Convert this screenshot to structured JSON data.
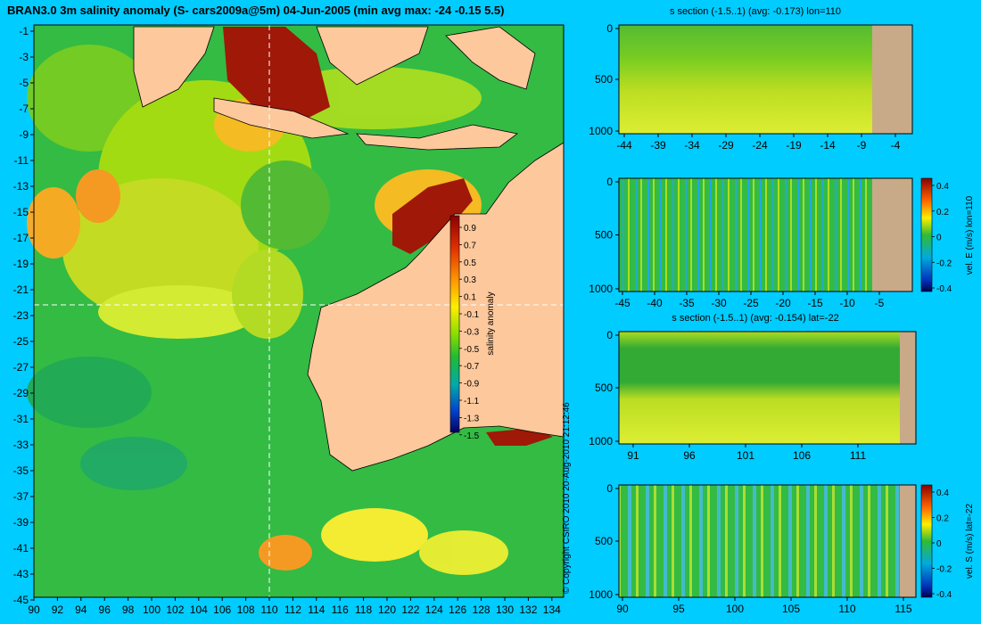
{
  "title": "BRAN3.0 3m salinity anomaly (S- cars2009a@5m) 04-Jun-2005 (min avg max: -24 -0.15 5.5)",
  "map": {
    "lat_ticks": [
      "-1",
      "-3",
      "-5",
      "-7",
      "-9",
      "-11",
      "-13",
      "-15",
      "-17",
      "-19",
      "-21",
      "-23",
      "-25",
      "-27",
      "-29",
      "-31",
      "-33",
      "-35",
      "-37",
      "-39",
      "-41",
      "-43",
      "-45"
    ],
    "lon_ticks": [
      "90",
      "92",
      "94",
      "96",
      "98",
      "100",
      "102",
      "104",
      "106",
      "108",
      "110",
      "112",
      "114",
      "116",
      "118",
      "120",
      "122",
      "124",
      "126",
      "128",
      "130",
      "132",
      "134"
    ],
    "colorbar": {
      "label": "salinity anomaly",
      "ticks": [
        "0.9",
        "0.7",
        "0.5",
        "0.3",
        "0.1",
        "-0.1",
        "-0.3",
        "-0.5",
        "-0.7",
        "-0.9",
        "-1.1",
        "-1.3",
        "-1.5"
      ]
    },
    "crosshair": {
      "lon": 110,
      "lat": -22
    }
  },
  "panels": [
    {
      "title": "s section (-1.5..1) (avg: -0.173) lon=110",
      "x_ticks": [
        "-44",
        "-39",
        "-34",
        "-29",
        "-24",
        "-19",
        "-14",
        "-9",
        "-4"
      ],
      "y_ticks": [
        "0",
        "500",
        "1000"
      ],
      "colorbar": null
    },
    {
      "title": "",
      "x_ticks": [
        "-45",
        "-40",
        "-35",
        "-30",
        "-25",
        "-20",
        "-15",
        "-10",
        "-5"
      ],
      "y_ticks": [
        "0",
        "500",
        "1000"
      ],
      "colorbar": {
        "label": "vel. E (m/s) lon=110",
        "ticks": [
          "0.4",
          "0.2",
          "0",
          "-0.2",
          "-0.4"
        ]
      }
    },
    {
      "title": "s section (-1.5..1) (avg: -0.154) lat=-22",
      "x_ticks": [
        "91",
        "96",
        "101",
        "106",
        "111"
      ],
      "y_ticks": [
        "0",
        "500",
        "1000"
      ],
      "colorbar": null
    },
    {
      "title": "",
      "x_ticks": [
        "90",
        "95",
        "100",
        "105",
        "110",
        "115"
      ],
      "y_ticks": [
        "0",
        "500",
        "1000"
      ],
      "colorbar": {
        "label": "vel. S (m/s) lat=-22",
        "ticks": [
          "0.4",
          "0.2",
          "0",
          "-0.2",
          "-0.4"
        ]
      }
    }
  ],
  "copyright": "© Copyright CSIRO 2010   20-Aug-2010 21:12:46",
  "colors": {
    "background": "#00ccff",
    "land": "#fcc89c",
    "section_land": "#c8aa88"
  }
}
